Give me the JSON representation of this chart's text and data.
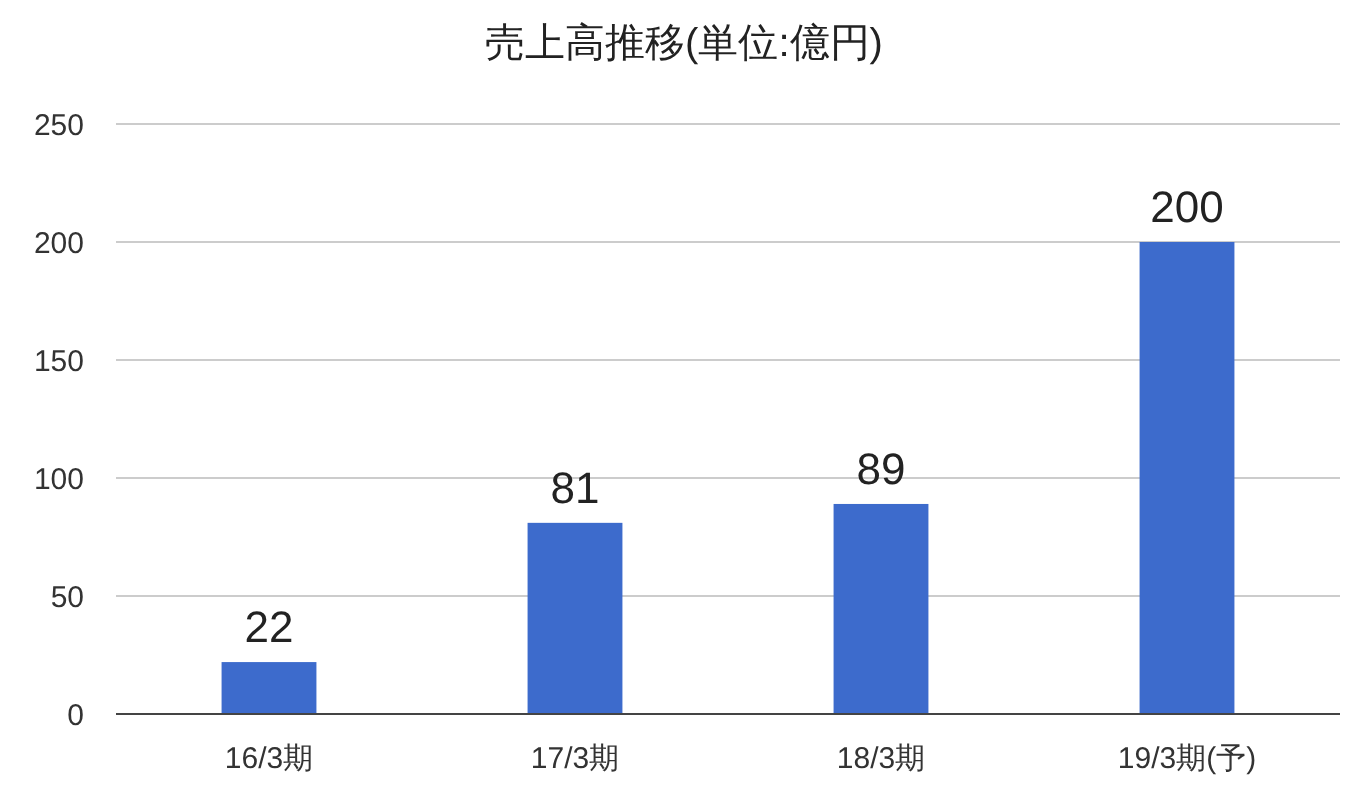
{
  "chart_data": {
    "type": "bar",
    "title": "売上高推移(単位:億円)",
    "categories": [
      "16/3期",
      "17/3期",
      "18/3期",
      "19/3期(予)"
    ],
    "values": [
      22,
      81,
      89,
      200
    ],
    "color": "#3d6bcc",
    "ylim": [
      0,
      250
    ],
    "yticks": [
      0,
      50,
      100,
      150,
      200,
      250
    ],
    "grid": "y",
    "data_labels": true
  }
}
